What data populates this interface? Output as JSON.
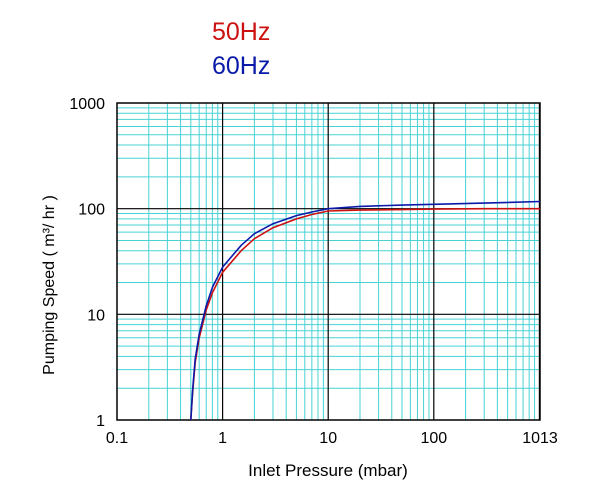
{
  "chart_data": {
    "type": "line",
    "xlabel": "Inlet Pressure (mbar)",
    "ylabel": "Pumping Speed ( m³/ hr )",
    "x_scale": "log",
    "y_scale": "log",
    "xlim": [
      0.1,
      1013
    ],
    "ylim": [
      1,
      1000
    ],
    "x_ticks": [
      "0.1",
      "1",
      "10",
      "100",
      "1013"
    ],
    "y_ticks": [
      "1000",
      "100",
      "10",
      "1"
    ],
    "grid": true,
    "legend": "top-center",
    "series": [
      {
        "name": "50Hz",
        "color": "#cc1111",
        "x": [
          0.5,
          0.52,
          0.55,
          0.6,
          0.7,
          0.8,
          1,
          1.5,
          2,
          3,
          5,
          7,
          10,
          20,
          50,
          100,
          300,
          1013
        ],
        "y": [
          1,
          1.8,
          3.5,
          6,
          11,
          16,
          25,
          40,
          52,
          66,
          80,
          88,
          95,
          97,
          98,
          99,
          100,
          100
        ]
      },
      {
        "name": "60Hz",
        "color": "#0a1aa8",
        "x": [
          0.5,
          0.52,
          0.55,
          0.6,
          0.7,
          0.8,
          1,
          1.5,
          2,
          3,
          5,
          7,
          10,
          20,
          50,
          100,
          300,
          1013
        ],
        "y": [
          1,
          1.9,
          3.8,
          6.5,
          12,
          18,
          28,
          45,
          58,
          72,
          86,
          93,
          100,
          105,
          108,
          110,
          113,
          117
        ]
      }
    ]
  }
}
